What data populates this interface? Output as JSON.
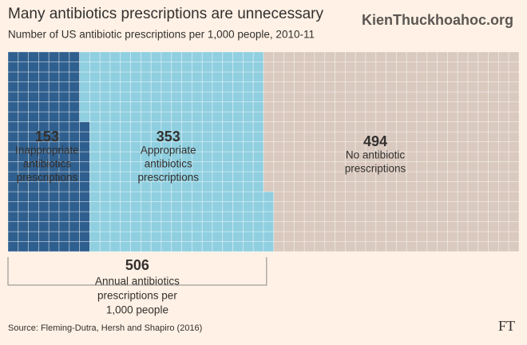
{
  "chart_data": {
    "type": "waffle",
    "title": "Many antibiotics prescriptions are unnecessary",
    "subtitle": "Number of US antibiotic prescriptions per 1,000 people, 2010-11",
    "segments": [
      {
        "name": [
          "Inappropriate",
          "antibiotics",
          "prescriptions"
        ],
        "value": 153,
        "color": "#2f5f8e"
      },
      {
        "name": [
          "Appropriate",
          "antibiotics",
          "prescriptions"
        ],
        "value": 353,
        "color": "#8fcfe0"
      },
      {
        "name": [
          "No antibiotic",
          "prescriptions"
        ],
        "value": 494,
        "color": "#d9c9be"
      }
    ],
    "total": {
      "value": 506,
      "label": [
        "Annual antibiotics",
        "prescriptions per",
        "1,000 people"
      ]
    },
    "source": "Source: Fleming-Dutra, Hersh and Shapiro (2016)",
    "logo": "FT",
    "watermark": "KienThuckhoahoc.org"
  }
}
